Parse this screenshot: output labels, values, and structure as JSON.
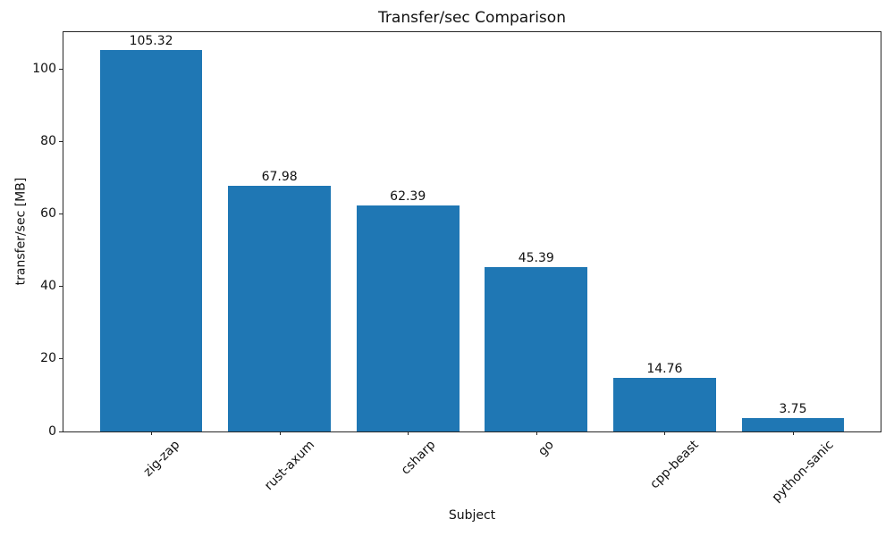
{
  "chart_data": {
    "type": "bar",
    "title": "Transfer/sec Comparison",
    "xlabel": "Subject",
    "ylabel": "transfer/sec [MB]",
    "categories": [
      "zig-zap",
      "rust-axum",
      "csharp",
      "go",
      "cpp-beast",
      "python-sanic"
    ],
    "values": [
      105.32,
      67.98,
      62.39,
      45.39,
      14.76,
      3.75
    ],
    "bar_labels": [
      "105.32",
      "67.98",
      "62.39",
      "45.39",
      "14.76",
      "3.75"
    ],
    "yticks": [
      0,
      20,
      40,
      60,
      80,
      100
    ],
    "ylim": [
      0,
      110.6
    ],
    "bar_color": "#1f77b4",
    "grid": false,
    "legend_position": "none",
    "x_tick_rotation_deg": 45
  }
}
